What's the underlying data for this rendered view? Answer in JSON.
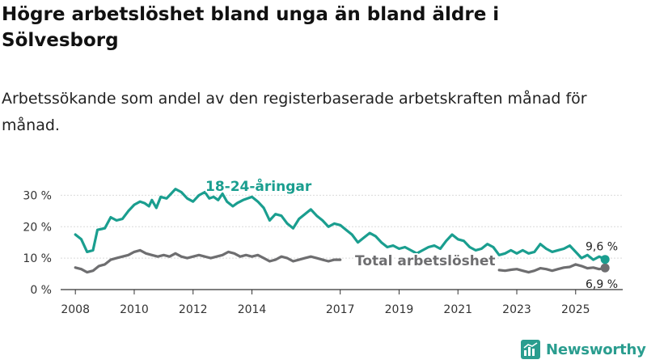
{
  "title": "Högre arbetslöshet bland unga än bland äldre i Sölvesborg",
  "subtitle": "Arbetssökande som andel av den registerbaserade arbetskraften månad för månad.",
  "brand": "Newsworthy",
  "colors": {
    "youth": "#1a9e8f",
    "total": "#6e6e70",
    "grid": "#d9d9d9",
    "axis": "#333333"
  },
  "chart_data": {
    "type": "line",
    "title": "Högre arbetslöshet bland unga än bland äldre i Sölvesborg",
    "xlabel": "",
    "ylabel": "",
    "xlim": [
      2007.5,
      2026.6
    ],
    "ylim": [
      0,
      35
    ],
    "grid": true,
    "y_ticks": [
      0,
      10,
      20,
      30
    ],
    "y_tick_labels": [
      "0 %",
      "10 %",
      "20 %",
      "30 %"
    ],
    "x_ticks": [
      2008,
      2010,
      2012,
      2014,
      2017,
      2019,
      2021,
      2023,
      2025
    ],
    "x_tick_labels": [
      "2008",
      "2010",
      "2012",
      "2014",
      "2017",
      "2019",
      "2021",
      "2023",
      "2025"
    ],
    "series": [
      {
        "name": "18-24-åringar",
        "label": "18-24-åringar",
        "color": "#1a9e8f",
        "end_label": "9,6 %",
        "points": [
          [
            2008.0,
            17.5
          ],
          [
            2008.2,
            16.0
          ],
          [
            2008.4,
            12.0
          ],
          [
            2008.6,
            12.5
          ],
          [
            2008.75,
            19.0
          ],
          [
            2009.0,
            19.5
          ],
          [
            2009.2,
            23.0
          ],
          [
            2009.4,
            22.0
          ],
          [
            2009.6,
            22.5
          ],
          [
            2009.8,
            25.0
          ],
          [
            2010.0,
            27.0
          ],
          [
            2010.2,
            28.0
          ],
          [
            2010.35,
            27.5
          ],
          [
            2010.5,
            26.5
          ],
          [
            2010.6,
            28.5
          ],
          [
            2010.75,
            26.0
          ],
          [
            2010.9,
            29.5
          ],
          [
            2011.1,
            29.0
          ],
          [
            2011.25,
            30.5
          ],
          [
            2011.4,
            32.0
          ],
          [
            2011.6,
            31.0
          ],
          [
            2011.8,
            29.0
          ],
          [
            2012.0,
            28.0
          ],
          [
            2012.2,
            30.0
          ],
          [
            2012.4,
            31.0
          ],
          [
            2012.55,
            29.0
          ],
          [
            2012.7,
            29.5
          ],
          [
            2012.85,
            28.5
          ],
          [
            2013.0,
            30.5
          ],
          [
            2013.15,
            28.0
          ],
          [
            2013.35,
            26.5
          ],
          [
            2013.5,
            27.5
          ],
          [
            2013.7,
            28.5
          ],
          [
            2014.0,
            29.5
          ],
          [
            2014.2,
            28.0
          ],
          [
            2014.4,
            26.0
          ],
          [
            2014.6,
            22.0
          ],
          [
            2014.8,
            24.0
          ],
          [
            2015.0,
            23.5
          ],
          [
            2015.2,
            21.0
          ],
          [
            2015.4,
            19.5
          ],
          [
            2015.6,
            22.5
          ],
          [
            2015.8,
            24.0
          ],
          [
            2016.0,
            25.5
          ],
          [
            2016.2,
            23.5
          ],
          [
            2016.4,
            22.0
          ],
          [
            2016.6,
            20.0
          ],
          [
            2016.8,
            21.0
          ],
          [
            2017.0,
            20.5
          ],
          [
            2017.2,
            19.0
          ],
          [
            2017.4,
            17.5
          ],
          [
            2017.6,
            15.0
          ],
          [
            2017.8,
            16.5
          ],
          [
            2018.0,
            18.0
          ],
          [
            2018.2,
            17.0
          ],
          [
            2018.4,
            15.0
          ],
          [
            2018.6,
            13.5
          ],
          [
            2018.8,
            14.0
          ],
          [
            2019.0,
            13.0
          ],
          [
            2019.2,
            13.5
          ],
          [
            2019.4,
            12.5
          ],
          [
            2019.6,
            11.5
          ],
          [
            2019.8,
            12.5
          ],
          [
            2020.0,
            13.5
          ],
          [
            2020.2,
            14.0
          ],
          [
            2020.4,
            13.0
          ],
          [
            2020.6,
            15.5
          ],
          [
            2020.8,
            17.5
          ],
          [
            2021.0,
            16.0
          ],
          [
            2021.2,
            15.5
          ],
          [
            2021.4,
            13.5
          ],
          [
            2021.6,
            12.5
          ],
          [
            2021.8,
            13.0
          ],
          [
            2022.0,
            14.5
          ],
          [
            2022.2,
            13.5
          ],
          [
            2022.4,
            11.0
          ],
          [
            2022.6,
            11.5
          ],
          [
            2022.8,
            12.5
          ],
          [
            2023.0,
            11.5
          ],
          [
            2023.2,
            12.5
          ],
          [
            2023.4,
            11.5
          ],
          [
            2023.6,
            12.0
          ],
          [
            2023.8,
            14.5
          ],
          [
            2024.0,
            13.0
          ],
          [
            2024.2,
            12.0
          ],
          [
            2024.4,
            12.5
          ],
          [
            2024.6,
            13.0
          ],
          [
            2024.8,
            14.0
          ],
          [
            2025.0,
            12.0
          ],
          [
            2025.2,
            10.0
          ],
          [
            2025.4,
            11.0
          ],
          [
            2025.6,
            9.5
          ],
          [
            2025.8,
            10.5
          ],
          [
            2026.0,
            9.6
          ]
        ]
      },
      {
        "name": "Total arbetslöshet",
        "label": "Total arbetslöshet",
        "color": "#6e6e70",
        "end_label": "6,9 %",
        "points": [
          [
            2008.0,
            7.0
          ],
          [
            2008.2,
            6.5
          ],
          [
            2008.4,
            5.5
          ],
          [
            2008.6,
            6.0
          ],
          [
            2008.8,
            7.5
          ],
          [
            2009.0,
            8.0
          ],
          [
            2009.2,
            9.5
          ],
          [
            2009.4,
            10.0
          ],
          [
            2009.6,
            10.5
          ],
          [
            2009.8,
            11.0
          ],
          [
            2010.0,
            12.0
          ],
          [
            2010.2,
            12.5
          ],
          [
            2010.4,
            11.5
          ],
          [
            2010.6,
            11.0
          ],
          [
            2010.8,
            10.5
          ],
          [
            2011.0,
            11.0
          ],
          [
            2011.2,
            10.5
          ],
          [
            2011.4,
            11.5
          ],
          [
            2011.6,
            10.5
          ],
          [
            2011.8,
            10.0
          ],
          [
            2012.0,
            10.5
          ],
          [
            2012.2,
            11.0
          ],
          [
            2012.4,
            10.5
          ],
          [
            2012.6,
            10.0
          ],
          [
            2012.8,
            10.5
          ],
          [
            2013.0,
            11.0
          ],
          [
            2013.2,
            12.0
          ],
          [
            2013.4,
            11.5
          ],
          [
            2013.6,
            10.5
          ],
          [
            2013.8,
            11.0
          ],
          [
            2014.0,
            10.5
          ],
          [
            2014.2,
            11.0
          ],
          [
            2014.4,
            10.0
          ],
          [
            2014.6,
            9.0
          ],
          [
            2014.8,
            9.5
          ],
          [
            2015.0,
            10.5
          ],
          [
            2015.2,
            10.0
          ],
          [
            2015.4,
            9.0
          ],
          [
            2015.6,
            9.5
          ],
          [
            2015.8,
            10.0
          ],
          [
            2016.0,
            10.5
          ],
          [
            2016.2,
            10.0
          ],
          [
            2016.4,
            9.5
          ],
          [
            2016.6,
            9.0
          ],
          [
            2016.8,
            9.5
          ],
          [
            2017.0,
            9.5
          ],
          [
            2022.4,
            6.2
          ],
          [
            2022.6,
            6.0
          ],
          [
            2022.8,
            6.3
          ],
          [
            2023.0,
            6.5
          ],
          [
            2023.2,
            6.0
          ],
          [
            2023.4,
            5.5
          ],
          [
            2023.6,
            6.0
          ],
          [
            2023.8,
            6.8
          ],
          [
            2024.0,
            6.5
          ],
          [
            2024.2,
            6.0
          ],
          [
            2024.4,
            6.5
          ],
          [
            2024.6,
            7.0
          ],
          [
            2024.8,
            7.2
          ],
          [
            2025.0,
            8.0
          ],
          [
            2025.2,
            7.5
          ],
          [
            2025.4,
            6.8
          ],
          [
            2025.6,
            7.0
          ],
          [
            2025.8,
            6.5
          ],
          [
            2026.0,
            6.9
          ]
        ]
      }
    ]
  }
}
